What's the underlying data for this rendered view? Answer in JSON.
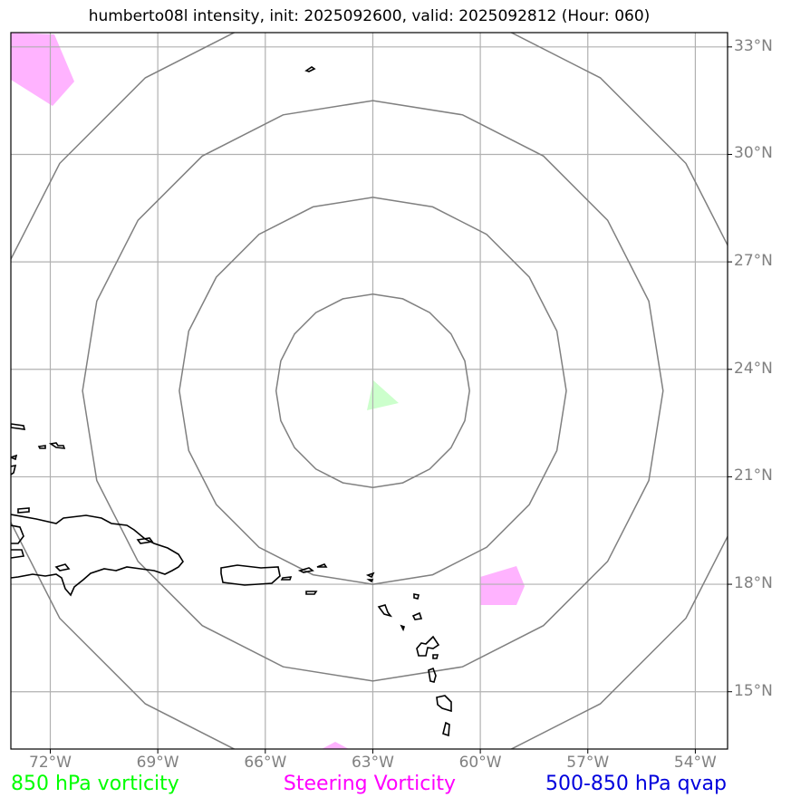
{
  "title": "humberto08l intensity, init: 2025092600, valid: 2025092812 (Hour: 060)",
  "map": {
    "lon_range": [
      -73.1,
      -53.1
    ],
    "lat_range": [
      13.4,
      33.4
    ],
    "lon_ticks": [
      {
        "value": -72,
        "label": "72°W"
      },
      {
        "value": -69,
        "label": "69°W"
      },
      {
        "value": -66,
        "label": "66°W"
      },
      {
        "value": -63,
        "label": "63°W"
      },
      {
        "value": -60,
        "label": "60°W"
      },
      {
        "value": -57,
        "label": "57°W"
      },
      {
        "value": -54,
        "label": "54°W"
      }
    ],
    "lat_ticks": [
      {
        "value": 33,
        "label": "33°N"
      },
      {
        "value": 30,
        "label": "30°N"
      },
      {
        "value": 27,
        "label": "27°N"
      },
      {
        "value": 24,
        "label": "24°N"
      },
      {
        "value": 21,
        "label": "21°N"
      },
      {
        "value": 18,
        "label": "18°N"
      },
      {
        "value": 15,
        "label": "15°N"
      }
    ],
    "grid": true,
    "range_rings_center": {
      "lon": -63.0,
      "lat": 23.4
    },
    "range_rings_deg": [
      2.7,
      5.4,
      8.1,
      10.8
    ],
    "colors": {
      "grid": "#b0b0b0",
      "rings": "#808080",
      "coast": "#000000",
      "vorticity_850": "#ccffcc",
      "steering_vorticity": "#ffb3ff"
    }
  },
  "legend": {
    "left": {
      "label": "850 hPa vorticity",
      "color": "#00ff00"
    },
    "center": {
      "label": "Steering Vorticity",
      "color": "#ff00ff"
    },
    "right": {
      "label": "500-850 hPa qvap",
      "color": "#0000dd"
    }
  }
}
